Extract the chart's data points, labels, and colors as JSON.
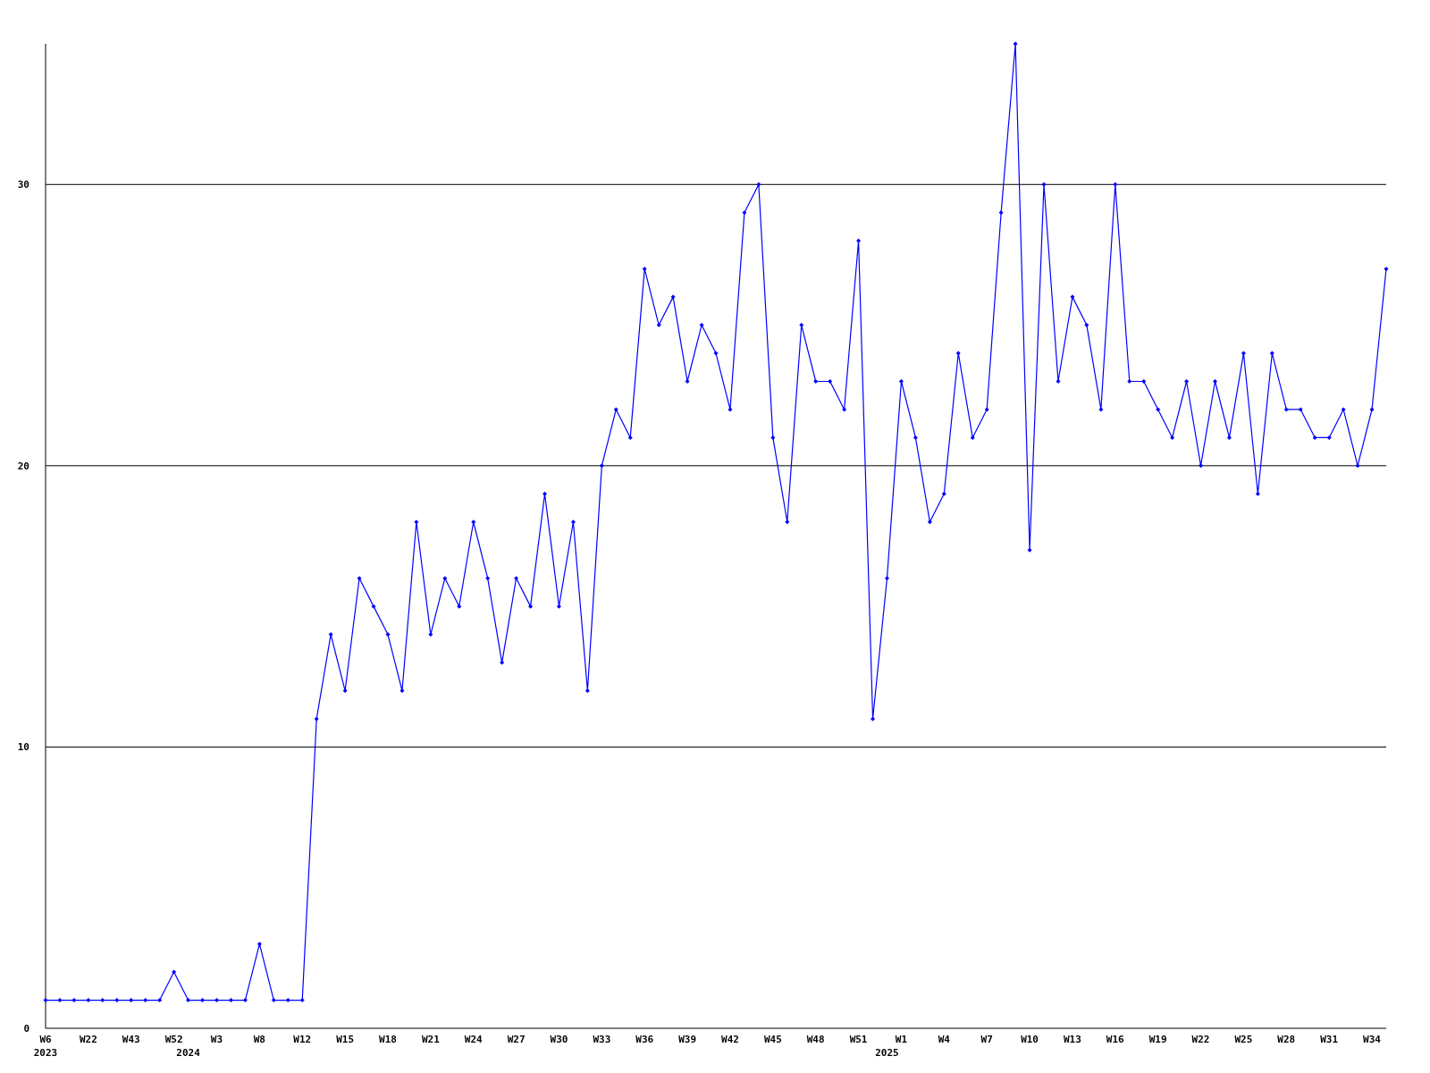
{
  "chart_data": {
    "type": "line",
    "categories": [
      "W6\n2023",
      null,
      null,
      "W22",
      null,
      null,
      "W43",
      null,
      null,
      "W52",
      "\n2024",
      null,
      "W3",
      null,
      null,
      "W8",
      null,
      null,
      "W12",
      null,
      null,
      "W15",
      null,
      null,
      "W18",
      null,
      null,
      "W21",
      null,
      null,
      "W24",
      null,
      null,
      "W27",
      null,
      null,
      "W30",
      null,
      null,
      "W33",
      null,
      null,
      "W36",
      null,
      null,
      "W39",
      null,
      null,
      "W42",
      null,
      null,
      "W45",
      null,
      null,
      "W48",
      null,
      null,
      "W51",
      null,
      "\n2025",
      "W1",
      null,
      null,
      "W4",
      null,
      null,
      "W7",
      null,
      null,
      "W10",
      null,
      null,
      "W13",
      null,
      null,
      "W16",
      null,
      null,
      "W19",
      null,
      null,
      "W22",
      null,
      null,
      "W25",
      null,
      null,
      "W28",
      null,
      null,
      "W31",
      null,
      null,
      "W34",
      null
    ],
    "series": [
      {
        "color": "#0000ff",
        "values": [
          1,
          1,
          1,
          1,
          1,
          1,
          1,
          1,
          1,
          2,
          1,
          1,
          1,
          1,
          1,
          3,
          1,
          1,
          1,
          11,
          14,
          12,
          16,
          15,
          14,
          12,
          18,
          14,
          16,
          15,
          18,
          16,
          13,
          16,
          15,
          19,
          15,
          18,
          12,
          20,
          22,
          21,
          27,
          25,
          26,
          23,
          25,
          24,
          22,
          29,
          30,
          21,
          18,
          25,
          23,
          23,
          22,
          28,
          11,
          16,
          23,
          21,
          18,
          19,
          24,
          21,
          22,
          29,
          35,
          17,
          30,
          23,
          26,
          25,
          22,
          30,
          23,
          23,
          22,
          21,
          23,
          20,
          23,
          21,
          24,
          19,
          24,
          22,
          22,
          21,
          21,
          22,
          20,
          22,
          27
        ]
      }
    ],
    "ylim": [
      0,
      35
    ],
    "yticks": [
      0,
      10,
      20,
      30
    ],
    "grid": "y",
    "marker": "diamond",
    "line_style": "solid"
  }
}
